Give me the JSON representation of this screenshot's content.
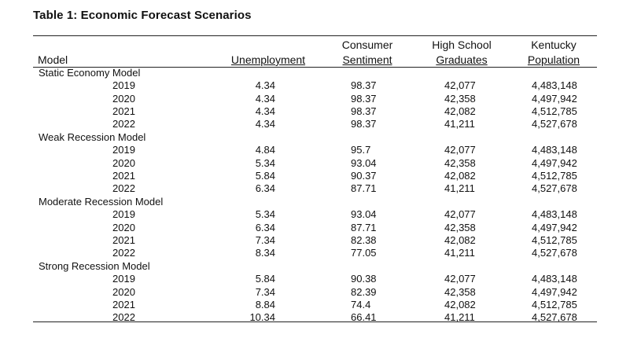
{
  "title": "Table 1: Economic Forecast Scenarios",
  "headers": {
    "model": "Model",
    "unemployment": "Unemployment",
    "consumer_sentiment": [
      "Consumer",
      "Sentiment"
    ],
    "high_school": [
      "High School",
      "Graduates"
    ],
    "kentucky": [
      "Kentucky",
      "Population"
    ]
  },
  "groups": [
    {
      "name": "Static Economy Model",
      "rows": [
        {
          "year": "2019",
          "unemployment": "4.34",
          "sentiment": "98.37",
          "graduates": "42,077",
          "population": "4,483,148"
        },
        {
          "year": "2020",
          "unemployment": "4.34",
          "sentiment": "98.37",
          "graduates": "42,358",
          "population": "4,497,942"
        },
        {
          "year": "2021",
          "unemployment": "4.34",
          "sentiment": "98.37",
          "graduates": "42,082",
          "population": "4,512,785"
        },
        {
          "year": "2022",
          "unemployment": "4.34",
          "sentiment": "98.37",
          "graduates": "41,211",
          "population": "4,527,678"
        }
      ]
    },
    {
      "name": "Weak Recession Model",
      "rows": [
        {
          "year": "2019",
          "unemployment": "4.84",
          "sentiment": "95.7",
          "graduates": "42,077",
          "population": "4,483,148"
        },
        {
          "year": "2020",
          "unemployment": "5.34",
          "sentiment": "93.04",
          "graduates": "42,358",
          "population": "4,497,942"
        },
        {
          "year": "2021",
          "unemployment": "5.84",
          "sentiment": "90.37",
          "graduates": "42,082",
          "population": "4,512,785"
        },
        {
          "year": "2022",
          "unemployment": "6.34",
          "sentiment": "87.71",
          "graduates": "41,211",
          "population": "4,527,678"
        }
      ]
    },
    {
      "name": "Moderate Recession Model",
      "rows": [
        {
          "year": "2019",
          "unemployment": "5.34",
          "sentiment": "93.04",
          "graduates": "42,077",
          "population": "4,483,148"
        },
        {
          "year": "2020",
          "unemployment": "6.34",
          "sentiment": "87.71",
          "graduates": "42,358",
          "population": "4,497,942"
        },
        {
          "year": "2021",
          "unemployment": "7.34",
          "sentiment": "82.38",
          "graduates": "42,082",
          "population": "4,512,785"
        },
        {
          "year": "2022",
          "unemployment": "8.34",
          "sentiment": "77.05",
          "graduates": "41,211",
          "population": "4,527,678"
        }
      ]
    },
    {
      "name": "Strong Recession Model",
      "rows": [
        {
          "year": "2019",
          "unemployment": "5.84",
          "sentiment": "90.38",
          "graduates": "42,077",
          "population": "4,483,148"
        },
        {
          "year": "2020",
          "unemployment": "7.34",
          "sentiment": "82.39",
          "graduates": "42,358",
          "population": "4,497,942"
        },
        {
          "year": "2021",
          "unemployment": "8.84",
          "sentiment": "74.4",
          "graduates": "42,082",
          "population": "4,512,785"
        },
        {
          "year": "2022",
          "unemployment": "10.34",
          "sentiment": "66.41",
          "graduates": "41,211",
          "population": "4,527,678"
        }
      ]
    }
  ]
}
